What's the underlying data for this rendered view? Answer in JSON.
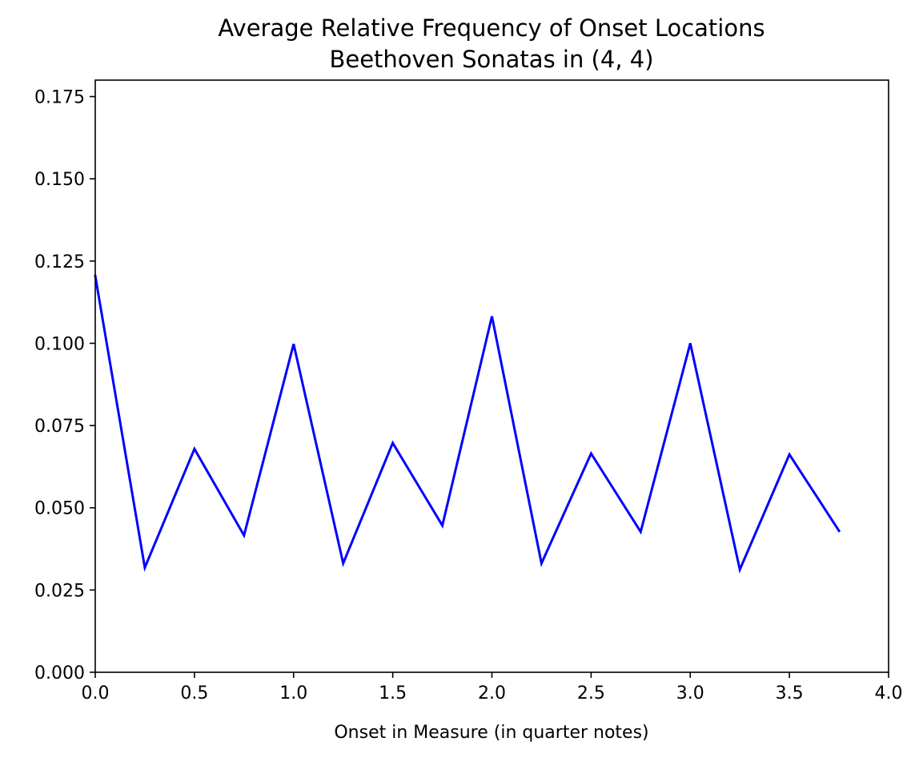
{
  "chart_data": {
    "type": "line",
    "title": "Average Relative Frequency of Onset Locations",
    "subtitle": "Beethoven Sonatas in (4, 4)",
    "xlabel": "Onset in Measure (in quarter notes)",
    "ylabel": "",
    "xlim": [
      0.0,
      4.0
    ],
    "ylim": [
      0.0,
      0.18
    ],
    "x_ticks": [
      0.0,
      0.5,
      1.0,
      1.5,
      2.0,
      2.5,
      3.0,
      3.5,
      4.0
    ],
    "x_tick_labels": [
      "0.0",
      "0.5",
      "1.0",
      "1.5",
      "2.0",
      "2.5",
      "3.0",
      "3.5",
      "4.0"
    ],
    "y_ticks": [
      0.0,
      0.025,
      0.05,
      0.075,
      0.1,
      0.125,
      0.15,
      0.175
    ],
    "y_tick_labels": [
      "0.000",
      "0.025",
      "0.050",
      "0.075",
      "0.100",
      "0.125",
      "0.150",
      "0.175"
    ],
    "grid": false,
    "legend": "none",
    "series": [
      {
        "color": "#0000ff",
        "x": [
          0.0,
          0.25,
          0.5,
          0.75,
          1.0,
          1.25,
          1.5,
          1.75,
          2.0,
          2.25,
          2.5,
          2.75,
          3.0,
          3.25,
          3.5,
          3.75
        ],
        "values": [
          0.1205,
          0.0318,
          0.0679,
          0.0416,
          0.0998,
          0.0331,
          0.0697,
          0.0446,
          0.1082,
          0.0331,
          0.0665,
          0.0427,
          0.1,
          0.0312,
          0.0662,
          0.043
        ]
      }
    ]
  }
}
